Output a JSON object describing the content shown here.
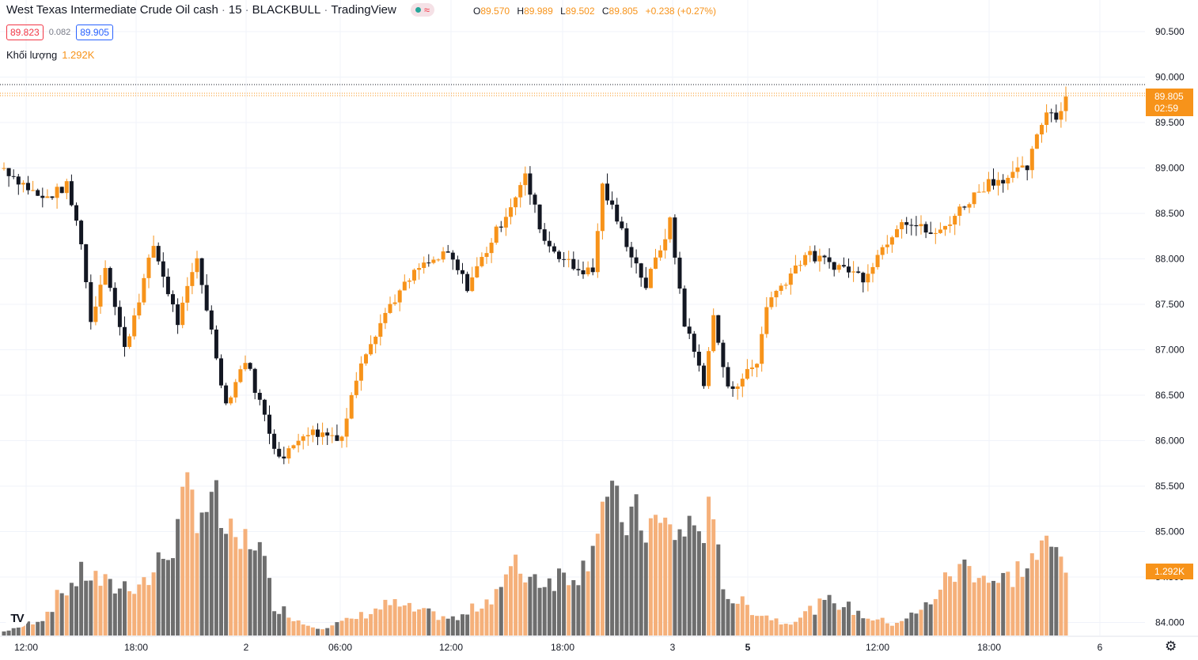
{
  "header": {
    "title": "West Texas Intermediate Crude Oil cash",
    "interval": "15",
    "broker": "BLACKBULL",
    "platform": "TradingView",
    "ohlc": {
      "o_label": "O",
      "o": "89.570",
      "h_label": "H",
      "h": "89.989",
      "l_label": "L",
      "l": "89.502",
      "c_label": "C",
      "c": "89.805",
      "change": "+0.238 (+0.27%)"
    }
  },
  "quote": {
    "sell": "89.823",
    "spread": "0.082",
    "buy": "89.905"
  },
  "volume": {
    "label": "Khối lượng",
    "value": "1.292K"
  },
  "logo_text": "TV",
  "settings_icon": "gear-icon",
  "colors": {
    "up": "#f7931a",
    "down": "#131722",
    "vol_up": "#f5b07a",
    "vol_down": "#6e6e6e",
    "grid": "#f0f3fa"
  },
  "chart_data": {
    "type": "candlestick",
    "y_ticks": [
      "90.500",
      "90.000",
      "89.500",
      "89.000",
      "88.500",
      "88.000",
      "87.500",
      "87.000",
      "86.500",
      "86.000",
      "85.500",
      "85.000",
      "84.500",
      "84.000"
    ],
    "x_ticks": [
      "12:00",
      "18:00",
      "2",
      "06:00",
      "12:00",
      "18:00",
      "3",
      "5",
      "12:00",
      "18:00",
      "6"
    ],
    "last_price_label": "89.805",
    "countdown_label": "02:59",
    "volume_label": "1.292K",
    "ylim": [
      83.92,
      90.72
    ],
    "anchors": [
      {
        "i": 0,
        "p": 89.0
      },
      {
        "i": 8,
        "p": 88.65
      },
      {
        "i": 13,
        "p": 88.8
      },
      {
        "i": 16,
        "p": 88.2
      },
      {
        "i": 18,
        "p": 87.3
      },
      {
        "i": 21,
        "p": 87.95
      },
      {
        "i": 25,
        "p": 87.0
      },
      {
        "i": 31,
        "p": 88.15
      },
      {
        "i": 36,
        "p": 87.3
      },
      {
        "i": 40,
        "p": 88.0
      },
      {
        "i": 46,
        "p": 86.4
      },
      {
        "i": 50,
        "p": 86.9
      },
      {
        "i": 56,
        "p": 85.95
      },
      {
        "i": 58,
        "p": 85.8
      },
      {
        "i": 62,
        "p": 86.1
      },
      {
        "i": 70,
        "p": 86.05
      },
      {
        "i": 74,
        "p": 86.9
      },
      {
        "i": 80,
        "p": 87.5
      },
      {
        "i": 86,
        "p": 87.9
      },
      {
        "i": 92,
        "p": 88.05
      },
      {
        "i": 96,
        "p": 87.7
      },
      {
        "i": 102,
        "p": 88.3
      },
      {
        "i": 108,
        "p": 88.9
      },
      {
        "i": 112,
        "p": 88.2
      },
      {
        "i": 118,
        "p": 87.9
      },
      {
        "i": 122,
        "p": 87.85
      },
      {
        "i": 124,
        "p": 88.8
      },
      {
        "i": 128,
        "p": 88.3
      },
      {
        "i": 133,
        "p": 87.7
      },
      {
        "i": 138,
        "p": 88.4
      },
      {
        "i": 141,
        "p": 87.3
      },
      {
        "i": 145,
        "p": 86.65
      },
      {
        "i": 147,
        "p": 87.35
      },
      {
        "i": 150,
        "p": 86.55
      },
      {
        "i": 156,
        "p": 86.85
      },
      {
        "i": 158,
        "p": 87.5
      },
      {
        "i": 166,
        "p": 88.05
      },
      {
        "i": 174,
        "p": 87.9
      },
      {
        "i": 178,
        "p": 87.8
      },
      {
        "i": 186,
        "p": 88.45
      },
      {
        "i": 193,
        "p": 88.25
      },
      {
        "i": 199,
        "p": 88.6
      },
      {
        "i": 204,
        "p": 88.85
      },
      {
        "i": 208,
        "p": 88.9
      },
      {
        "i": 212,
        "p": 89.0
      },
      {
        "i": 216,
        "p": 89.65
      },
      {
        "i": 218,
        "p": 89.55
      },
      {
        "i": 220,
        "p": 89.8
      }
    ],
    "volume_anchors": [
      {
        "i": 0,
        "v": 5
      },
      {
        "i": 8,
        "v": 22
      },
      {
        "i": 12,
        "v": 55
      },
      {
        "i": 17,
        "v": 80
      },
      {
        "i": 22,
        "v": 60
      },
      {
        "i": 30,
        "v": 70
      },
      {
        "i": 36,
        "v": 130
      },
      {
        "i": 38,
        "v": 175
      },
      {
        "i": 44,
        "v": 160
      },
      {
        "i": 48,
        "v": 105
      },
      {
        "i": 52,
        "v": 130
      },
      {
        "i": 56,
        "v": 40
      },
      {
        "i": 62,
        "v": 15
      },
      {
        "i": 66,
        "v": 10
      },
      {
        "i": 72,
        "v": 20
      },
      {
        "i": 80,
        "v": 40
      },
      {
        "i": 86,
        "v": 30
      },
      {
        "i": 94,
        "v": 20
      },
      {
        "i": 100,
        "v": 45
      },
      {
        "i": 106,
        "v": 85
      },
      {
        "i": 112,
        "v": 70
      },
      {
        "i": 120,
        "v": 85
      },
      {
        "i": 124,
        "v": 170
      },
      {
        "i": 128,
        "v": 150
      },
      {
        "i": 134,
        "v": 140
      },
      {
        "i": 140,
        "v": 130
      },
      {
        "i": 146,
        "v": 145
      },
      {
        "i": 150,
        "v": 50
      },
      {
        "i": 156,
        "v": 30
      },
      {
        "i": 162,
        "v": 15
      },
      {
        "i": 168,
        "v": 35
      },
      {
        "i": 172,
        "v": 45
      },
      {
        "i": 178,
        "v": 25
      },
      {
        "i": 184,
        "v": 15
      },
      {
        "i": 190,
        "v": 30
      },
      {
        "i": 196,
        "v": 75
      },
      {
        "i": 200,
        "v": 90
      },
      {
        "i": 206,
        "v": 65
      },
      {
        "i": 212,
        "v": 90
      },
      {
        "i": 216,
        "v": 110
      },
      {
        "i": 220,
        "v": 100
      }
    ],
    "volume_max": 200,
    "grid": true
  }
}
